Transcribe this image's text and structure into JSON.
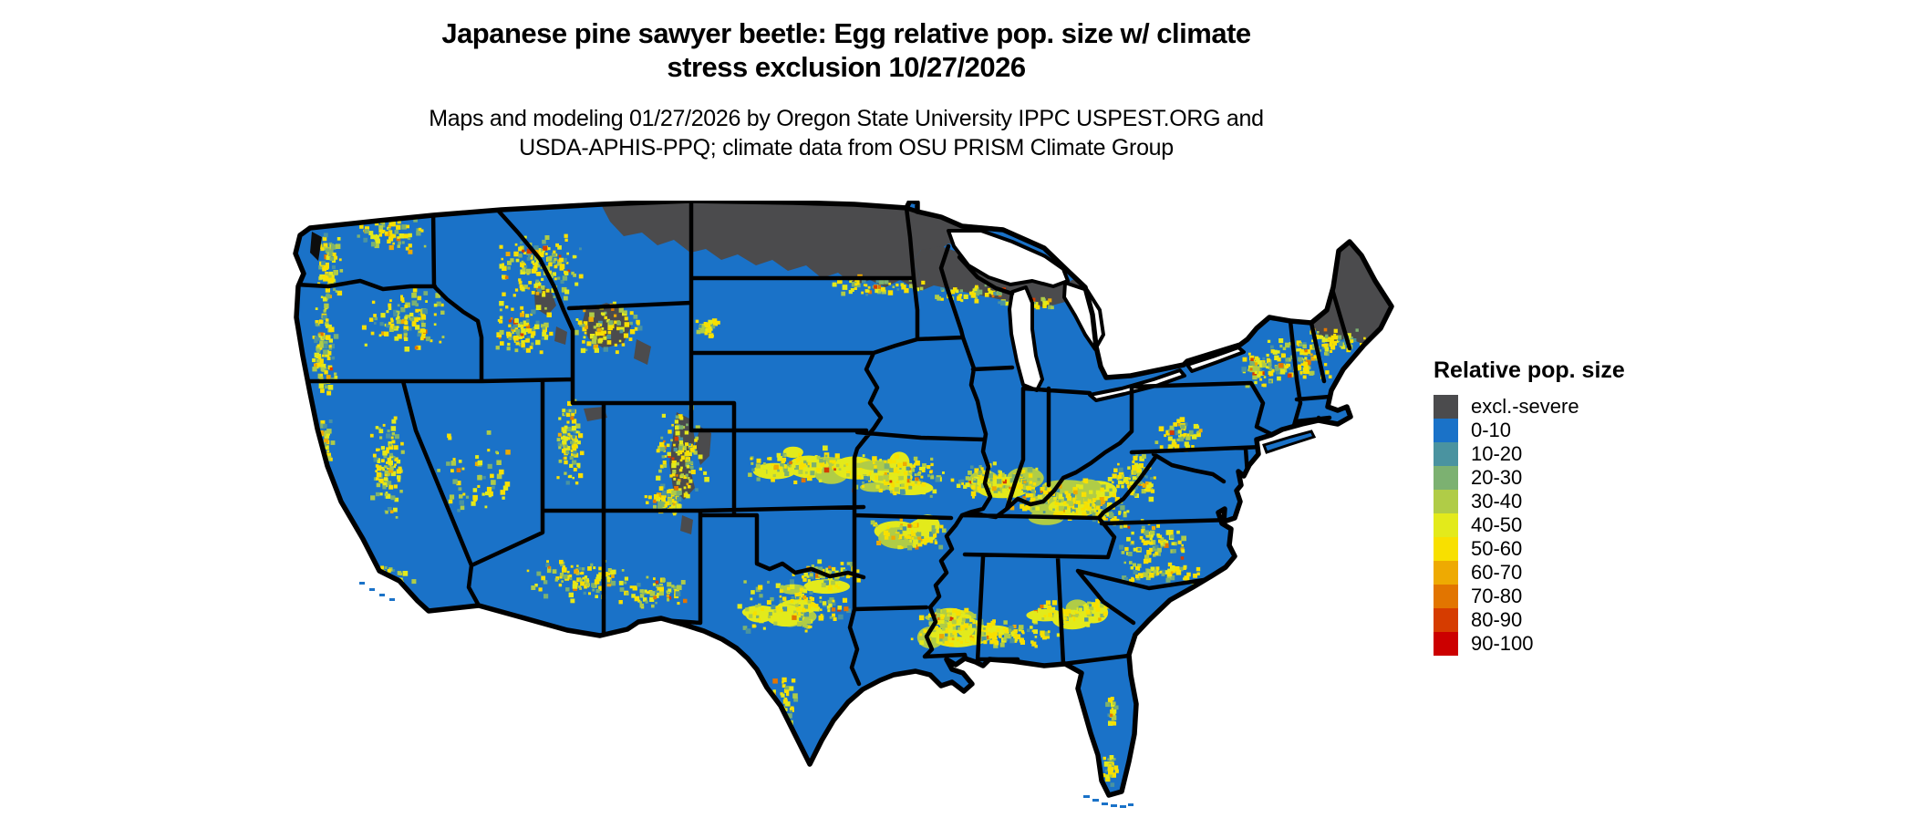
{
  "header": {
    "title_line1": "Japanese pine sawyer beetle: Egg relative pop. size w/ climate",
    "title_line2": "stress exclusion 10/27/2026",
    "subtitle_line1": "Maps and modeling 01/27/2026 by Oregon State University IPPC USPEST.ORG and",
    "subtitle_line2": "USDA-APHIS-PPQ; climate data from OSU PRISM Climate Group"
  },
  "legend": {
    "title": "Relative pop. size",
    "items": [
      {
        "key": "excl",
        "label": "excl.-severe",
        "color": "#4b4b4d"
      },
      {
        "key": "p0",
        "label": "0-10",
        "color": "#1a72c8"
      },
      {
        "key": "p10",
        "label": "10-20",
        "color": "#4a93a0"
      },
      {
        "key": "p20",
        "label": "20-30",
        "color": "#7cb171"
      },
      {
        "key": "p30",
        "label": "30-40",
        "color": "#b0cc47"
      },
      {
        "key": "p40",
        "label": "40-50",
        "color": "#e3ea1b"
      },
      {
        "key": "p50",
        "label": "50-60",
        "color": "#f8e000"
      },
      {
        "key": "p60",
        "label": "60-70",
        "color": "#eeaa02"
      },
      {
        "key": "p70",
        "label": "70-80",
        "color": "#e27500"
      },
      {
        "key": "p80",
        "label": "80-90",
        "color": "#d63c00"
      },
      {
        "key": "p90",
        "label": "90-100",
        "color": "#cc0000"
      }
    ]
  },
  "map": {
    "background": "#ffffff",
    "water_color": "#ffffff",
    "state_border_color": "#000000"
  }
}
